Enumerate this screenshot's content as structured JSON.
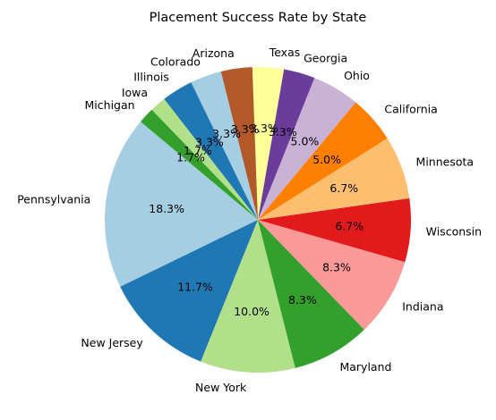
{
  "chart_data": {
    "type": "pie",
    "title": "Placement Success Rate by State",
    "start_angle_deg": 140,
    "direction": "counterclockwise",
    "slices": [
      {
        "label": "Pennsylvania",
        "value": 18.3,
        "pct_label": "18.3%",
        "color": "#a6cee3"
      },
      {
        "label": "New Jersey",
        "value": 11.7,
        "pct_label": "11.7%",
        "color": "#1f78b4"
      },
      {
        "label": "New York",
        "value": 10.0,
        "pct_label": "10.0%",
        "color": "#b2df8a"
      },
      {
        "label": "Maryland",
        "value": 8.3,
        "pct_label": "8.3%",
        "color": "#33a02c"
      },
      {
        "label": "Indiana",
        "value": 8.3,
        "pct_label": "8.3%",
        "color": "#fb9a99"
      },
      {
        "label": "Wisconsin",
        "value": 6.7,
        "pct_label": "6.7%",
        "color": "#e31a1c"
      },
      {
        "label": "Minnesota",
        "value": 6.7,
        "pct_label": "6.7%",
        "color": "#fdbf6f"
      },
      {
        "label": "California",
        "value": 5.0,
        "pct_label": "5.0%",
        "color": "#ff7f00"
      },
      {
        "label": "Ohio",
        "value": 5.0,
        "pct_label": "5.0%",
        "color": "#cab2d6"
      },
      {
        "label": "Georgia",
        "value": 3.3,
        "pct_label": "3.3%",
        "color": "#6a3d9a"
      },
      {
        "label": "Texas",
        "value": 3.3,
        "pct_label": "3.3%",
        "color": "#ffff99"
      },
      {
        "label": "Arizona",
        "value": 3.3,
        "pct_label": "3.3%",
        "color": "#b15928"
      },
      {
        "label": "Colorado",
        "value": 3.3,
        "pct_label": "3.3%",
        "color": "#a6cee3"
      },
      {
        "label": "Illinois",
        "value": 3.3,
        "pct_label": "3.3%",
        "color": "#1f78b4"
      },
      {
        "label": "Iowa",
        "value": 1.7,
        "pct_label": "1.7%",
        "color": "#b2df8a"
      },
      {
        "label": "Michigan",
        "value": 1.7,
        "pct_label": "1.7%",
        "color": "#33a02c"
      }
    ]
  }
}
